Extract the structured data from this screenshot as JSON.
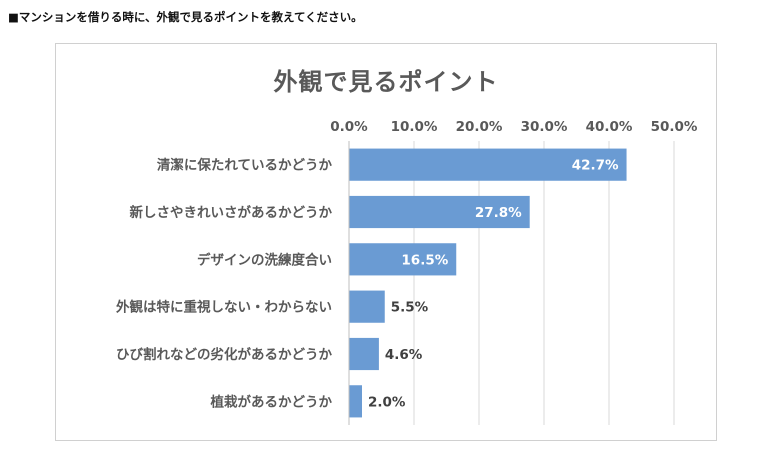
{
  "page": {
    "question": "■マンションを借りる時に、外観で見るポイントを教えてください。"
  },
  "chart_data": {
    "type": "bar",
    "orientation": "horizontal",
    "title": "外観で見るポイント",
    "categories": [
      "清潔に保たれているかどうか",
      "新しさやきれいさがあるかどうか",
      "デザインの洗練度合い",
      "外観は特に重視しない・わからない",
      "ひび割れなどの劣化があるかどうか",
      "植栽があるかどうか"
    ],
    "values": [
      42.7,
      27.8,
      16.5,
      5.5,
      4.6,
      2.0
    ],
    "value_labels": [
      "42.7%",
      "27.8%",
      "16.5%",
      "5.5%",
      "4.6%",
      "2.0%"
    ],
    "xlim": [
      0,
      50
    ],
    "ticks": [
      0,
      10,
      20,
      30,
      40,
      50
    ],
    "tick_labels": [
      "0.0%",
      "10.0%",
      "20.0%",
      "30.0%",
      "40.0%",
      "50.0%"
    ],
    "axis_position": "top",
    "grid": true,
    "bar_color": "#6a9bd3",
    "grid_color": "#d9d9d9",
    "label_inside_color": "#ffffff",
    "label_outside_color": "#404040"
  }
}
